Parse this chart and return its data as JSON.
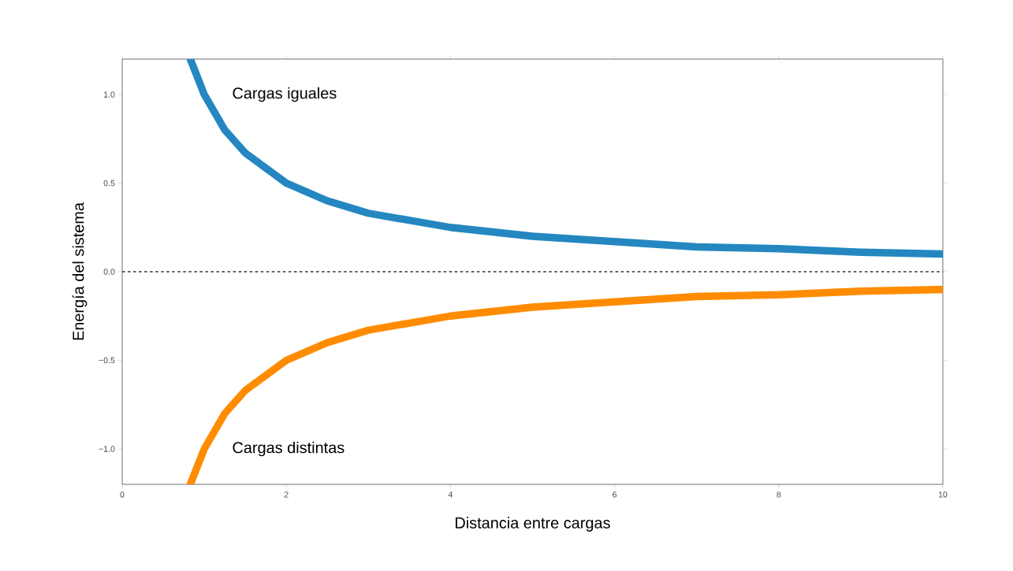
{
  "chart_data": {
    "type": "line",
    "xlabel": "Distancia entre cargas",
    "ylabel": "Energía del sistema",
    "xlim": [
      0,
      10
    ],
    "ylim": [
      -1.2,
      1.2
    ],
    "xticks": [
      0,
      2,
      4,
      6,
      8,
      10
    ],
    "yticks": [
      {
        "value": -1.0,
        "label": "−1.0"
      },
      {
        "value": -0.5,
        "label": "−0.5"
      },
      {
        "value": 0.0,
        "label": "0.0"
      },
      {
        "value": 0.5,
        "label": "0.5"
      },
      {
        "value": 1.0,
        "label": "1.0"
      }
    ],
    "grid": false,
    "line_style": "solid",
    "marker": "none",
    "series": [
      {
        "name": "Cargas iguales",
        "color": "#2487c0",
        "x": [
          0.83,
          1.0,
          1.25,
          1.5,
          2,
          2.5,
          3,
          4,
          5,
          6,
          7,
          8,
          9,
          10
        ],
        "values": [
          1.2,
          1.0,
          0.8,
          0.67,
          0.5,
          0.4,
          0.33,
          0.25,
          0.2,
          0.17,
          0.14,
          0.13,
          0.11,
          0.1
        ]
      },
      {
        "name": "Cargas distintas",
        "color": "#ff8c00",
        "x": [
          0.83,
          1.0,
          1.25,
          1.5,
          2,
          2.5,
          3,
          4,
          5,
          6,
          7,
          8,
          9,
          10
        ],
        "values": [
          -1.2,
          -1.0,
          -0.8,
          -0.67,
          -0.5,
          -0.4,
          -0.33,
          -0.25,
          -0.2,
          -0.17,
          -0.14,
          -0.13,
          -0.11,
          -0.1
        ]
      }
    ],
    "ref_lines": [
      {
        "axis": "y",
        "value": 0,
        "color": "#333333",
        "line_style": "dashed"
      }
    ]
  }
}
